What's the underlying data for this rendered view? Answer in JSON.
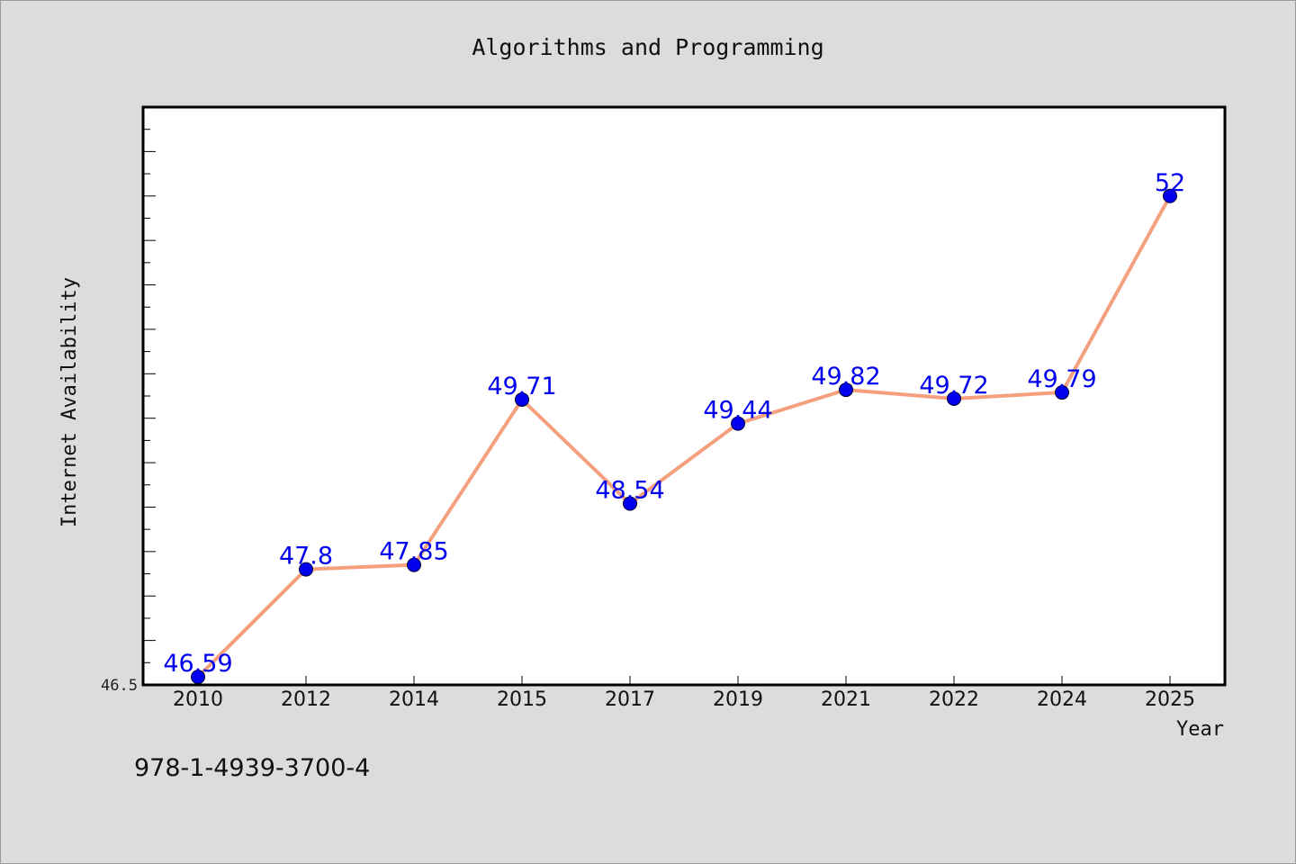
{
  "chart_data": {
    "type": "line",
    "title": "Algorithms and Programming",
    "xlabel": "Year",
    "ylabel": "Internet Availability",
    "categories": [
      "2010",
      "2012",
      "2014",
      "2015",
      "2017",
      "2019",
      "2021",
      "2022",
      "2024",
      "2025"
    ],
    "series": [
      {
        "values": [
          46.59,
          47.8,
          47.85,
          49.71,
          48.54,
          49.44,
          49.82,
          49.72,
          49.79,
          52
        ]
      }
    ],
    "data_labels": [
      "46.59",
      "47.8",
      "47.85",
      "49.71",
      "48.54",
      "49.44",
      "49.82",
      "49.72",
      "49.79",
      "52"
    ],
    "ylim": [
      46.5,
      53.0
    ],
    "y_tick_labels": [
      "46.5"
    ],
    "grid": false,
    "colors": {
      "line": "#f4a07e",
      "marker": "#0000ee",
      "label": "#0000ee",
      "background": "#dcdcdc",
      "plot_background": "#ffffff"
    }
  },
  "footer": {
    "isbn": "978-1-4939-3700-4"
  }
}
